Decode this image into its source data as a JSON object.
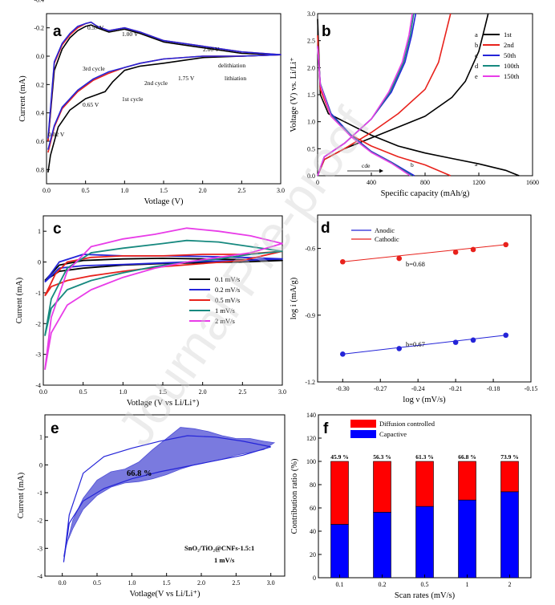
{
  "watermark": "Journal Pre-proof",
  "chart_data": [
    {
      "id": "a",
      "type": "line",
      "panel_label": "a",
      "xlabel": "Votlage (V)",
      "ylabel": "Current (mA)",
      "xlim": [
        0,
        3.0
      ],
      "ylim": [
        0.9,
        -0.3
      ],
      "y_inverted": true,
      "xticks": [
        "0.0",
        "0.5",
        "1.0",
        "1.5",
        "2.0",
        "2.5",
        "3.0"
      ],
      "yticks": [
        "-0.4",
        "-0.2",
        "0.0",
        "0.2",
        "0.4",
        "0.6",
        "0.8"
      ],
      "annotations": [
        "0.57 V",
        "1.00 V",
        "2.00 V",
        "delithiation",
        "lithiation",
        "1.75 V",
        "0.65 V",
        "0.02 V",
        "3rd cycle",
        "2nd cycle",
        "1st cycle"
      ],
      "series": [
        {
          "name": "1st cycle",
          "color": "#000000",
          "x": [
            0.02,
            0.1,
            0.2,
            0.3,
            0.4,
            0.5,
            0.57,
            0.65,
            0.8,
            1.0,
            1.2,
            1.5,
            1.75,
            2.0,
            2.5,
            3.0,
            2.5,
            2.0,
            1.75,
            1.5,
            1.2,
            1.0,
            0.85,
            0.75,
            0.65,
            0.5,
            0.3,
            0.15,
            0.05,
            0.02
          ],
          "y": [
            0.6,
            0.1,
            -0.05,
            -0.13,
            -0.18,
            -0.21,
            -0.22,
            -0.2,
            -0.17,
            -0.19,
            -0.16,
            -0.1,
            -0.08,
            -0.06,
            -0.02,
            -0.01,
            0.0,
            0.01,
            0.03,
            0.05,
            0.07,
            0.1,
            0.18,
            0.25,
            0.27,
            0.3,
            0.38,
            0.5,
            0.7,
            0.82
          ]
        },
        {
          "name": "2nd cycle",
          "color": "#e8221c",
          "x": [
            0.02,
            0.1,
            0.2,
            0.3,
            0.4,
            0.5,
            0.57,
            0.65,
            0.8,
            1.0,
            1.2,
            1.5,
            2.0,
            2.5,
            3.0,
            2.5,
            2.0,
            1.5,
            1.2,
            1.0,
            0.8,
            0.6,
            0.4,
            0.2,
            0.1,
            0.02
          ],
          "y": [
            0.6,
            0.05,
            -0.08,
            -0.15,
            -0.2,
            -0.23,
            -0.24,
            -0.21,
            -0.18,
            -0.2,
            -0.17,
            -0.11,
            -0.07,
            -0.03,
            -0.01,
            0.0,
            0.0,
            0.02,
            0.05,
            0.08,
            0.12,
            0.17,
            0.25,
            0.37,
            0.5,
            0.68
          ]
        },
        {
          "name": "3rd cycle",
          "color": "#2424d8",
          "x": [
            0.02,
            0.1,
            0.2,
            0.3,
            0.4,
            0.5,
            0.57,
            0.65,
            0.8,
            1.0,
            1.2,
            1.5,
            2.0,
            2.5,
            3.0,
            2.5,
            2.0,
            1.5,
            1.2,
            1.0,
            0.8,
            0.6,
            0.4,
            0.2,
            0.1,
            0.02
          ],
          "y": [
            0.58,
            0.04,
            -0.09,
            -0.16,
            -0.21,
            -0.23,
            -0.24,
            -0.21,
            -0.18,
            -0.2,
            -0.17,
            -0.11,
            -0.07,
            -0.03,
            -0.01,
            0.0,
            0.0,
            0.02,
            0.05,
            0.08,
            0.11,
            0.16,
            0.24,
            0.36,
            0.49,
            0.66
          ]
        }
      ]
    },
    {
      "id": "b",
      "type": "line",
      "panel_label": "b",
      "xlabel": "Specific capacity (mAh/g)",
      "ylabel": "Voltage (V) vs. Li/Li⁺",
      "xlim": [
        0,
        1600
      ],
      "ylim": [
        0,
        3.0
      ],
      "xticks": [
        "0",
        "400",
        "800",
        "1200",
        "1600"
      ],
      "yticks": [
        "0.0",
        "0.5",
        "1.0",
        "1.5",
        "2.0",
        "2.5",
        "3.0"
      ],
      "annotations": [
        "a",
        "b",
        "cde"
      ],
      "legend": [
        {
          "key": "a",
          "label": "1st",
          "color": "#000000"
        },
        {
          "key": "b",
          "label": "2nd",
          "color": "#e8221c"
        },
        {
          "key": "c",
          "label": "50th",
          "color": "#2424d8"
        },
        {
          "key": "d",
          "label": "100th",
          "color": "#17897f"
        },
        {
          "key": "e",
          "label": "150th",
          "color": "#e83ce8"
        }
      ],
      "series": [
        {
          "name": "1st discharge",
          "color": "#000000",
          "x": [
            0,
            20,
            80,
            200,
            400,
            600,
            800,
            1000,
            1200,
            1400,
            1500
          ],
          "y": [
            2.9,
            1.5,
            1.15,
            1.0,
            0.75,
            0.55,
            0.42,
            0.32,
            0.22,
            0.1,
            0.0
          ]
        },
        {
          "name": "1st charge",
          "color": "#000000",
          "x": [
            0,
            50,
            200,
            400,
            600,
            800,
            1000,
            1100,
            1200,
            1250,
            1270
          ],
          "y": [
            0.0,
            0.3,
            0.5,
            0.7,
            0.9,
            1.1,
            1.45,
            1.75,
            2.3,
            2.8,
            3.0
          ]
        },
        {
          "name": "2nd discharge",
          "color": "#e8221c",
          "x": [
            0,
            20,
            100,
            250,
            400,
            600,
            800,
            990
          ],
          "y": [
            2.6,
            1.6,
            1.1,
            0.75,
            0.55,
            0.35,
            0.2,
            0.0
          ]
        },
        {
          "name": "2nd charge",
          "color": "#e8221c",
          "x": [
            0,
            50,
            200,
            400,
            600,
            800,
            900,
            960,
            990
          ],
          "y": [
            0.0,
            0.3,
            0.5,
            0.8,
            1.15,
            1.6,
            2.1,
            2.7,
            3.0
          ]
        },
        {
          "name": "50th discharge",
          "color": "#2424d8",
          "x": [
            0,
            20,
            100,
            250,
            400,
            550,
            720
          ],
          "y": [
            2.4,
            1.7,
            1.15,
            0.75,
            0.45,
            0.25,
            0.0
          ]
        },
        {
          "name": "50th charge",
          "color": "#2424d8",
          "x": [
            0,
            50,
            200,
            400,
            550,
            650,
            700,
            730
          ],
          "y": [
            0.0,
            0.35,
            0.6,
            1.05,
            1.55,
            2.1,
            2.6,
            3.0
          ]
        },
        {
          "name": "100th discharge",
          "color": "#17897f",
          "x": [
            0,
            20,
            100,
            250,
            400,
            550,
            700
          ],
          "y": [
            2.4,
            1.7,
            1.12,
            0.73,
            0.44,
            0.24,
            0.0
          ]
        },
        {
          "name": "100th charge",
          "color": "#17897f",
          "x": [
            0,
            50,
            200,
            400,
            540,
            640,
            690,
            715
          ],
          "y": [
            0.0,
            0.35,
            0.6,
            1.05,
            1.55,
            2.1,
            2.6,
            3.0
          ]
        },
        {
          "name": "150th discharge",
          "color": "#e83ce8",
          "x": [
            0,
            20,
            100,
            250,
            400,
            550,
            690
          ],
          "y": [
            2.4,
            1.68,
            1.1,
            0.72,
            0.43,
            0.23,
            0.0
          ]
        },
        {
          "name": "150th charge",
          "color": "#e83ce8",
          "x": [
            0,
            50,
            200,
            400,
            530,
            630,
            680,
            705
          ],
          "y": [
            0.0,
            0.35,
            0.6,
            1.05,
            1.55,
            2.1,
            2.6,
            3.0
          ]
        }
      ]
    },
    {
      "id": "c",
      "type": "line",
      "panel_label": "c",
      "xlabel": "Votlage (V vs Li/Li⁺)",
      "ylabel": "Current (mA)",
      "xlim": [
        0,
        3.0
      ],
      "ylim": [
        -4,
        1.5
      ],
      "xticks": [
        "0.0",
        "0.5",
        "1.0",
        "1.5",
        "2.0",
        "2.5",
        "3.0"
      ],
      "yticks": [
        "-4",
        "-3",
        "-2",
        "-1",
        "0",
        "1"
      ],
      "legend": [
        {
          "label": "0.1 mV/s",
          "color": "#000000"
        },
        {
          "label": "0.2 mV/s",
          "color": "#2424d8"
        },
        {
          "label": "0.5 mV/s",
          "color": "#e8221c"
        },
        {
          "label": "1 mV/s",
          "color": "#17897f"
        },
        {
          "label": "2 mV/s",
          "color": "#e83ce8"
        }
      ],
      "series": [
        {
          "name": "0.1 mV/s",
          "color": "#000000",
          "x": [
            0.02,
            0.2,
            0.5,
            1.0,
            1.5,
            2.0,
            2.5,
            3.0,
            2.5,
            2.0,
            1.5,
            1.0,
            0.5,
            0.2,
            0.02
          ],
          "y": [
            -0.6,
            -0.1,
            0.05,
            0.1,
            0.12,
            0.1,
            0.08,
            0.05,
            0.0,
            -0.02,
            -0.05,
            -0.1,
            -0.2,
            -0.3,
            -0.6
          ]
        },
        {
          "name": "0.2 mV/s",
          "color": "#2424d8",
          "x": [
            0.02,
            0.2,
            0.5,
            1.0,
            1.5,
            2.0,
            2.5,
            3.0,
            2.5,
            2.0,
            1.5,
            1.0,
            0.5,
            0.2,
            0.02
          ],
          "y": [
            -0.65,
            0.0,
            0.25,
            0.2,
            0.2,
            0.18,
            0.15,
            0.1,
            0.05,
            0.02,
            -0.03,
            -0.08,
            -0.12,
            -0.2,
            -0.65
          ]
        },
        {
          "name": "0.5 mV/s",
          "color": "#e8221c",
          "x": [
            0.02,
            0.15,
            0.3,
            0.6,
            1.0,
            1.5,
            2.0,
            2.5,
            3.0,
            2.5,
            2.0,
            1.5,
            1.0,
            0.6,
            0.3,
            0.1,
            0.02
          ],
          "y": [
            -1.1,
            -0.4,
            0.0,
            0.15,
            0.2,
            0.2,
            0.25,
            0.25,
            0.35,
            0.05,
            -0.05,
            -0.15,
            -0.3,
            -0.45,
            -0.6,
            -0.8,
            -1.1
          ]
        },
        {
          "name": "1 mV/s",
          "color": "#17897f",
          "x": [
            0.02,
            0.1,
            0.3,
            0.6,
            1.0,
            1.5,
            1.8,
            2.2,
            2.6,
            3.0,
            2.6,
            2.2,
            1.8,
            1.4,
            1.0,
            0.6,
            0.3,
            0.1,
            0.02
          ],
          "y": [
            -2.4,
            -1.2,
            -0.2,
            0.3,
            0.45,
            0.6,
            0.7,
            0.65,
            0.5,
            0.35,
            0.25,
            0.1,
            0.0,
            -0.15,
            -0.35,
            -0.6,
            -0.9,
            -1.5,
            -2.4
          ]
        },
        {
          "name": "2 mV/s",
          "color": "#e83ce8",
          "x": [
            0.02,
            0.1,
            0.3,
            0.6,
            1.0,
            1.4,
            1.8,
            2.2,
            2.6,
            3.0,
            2.6,
            2.2,
            1.8,
            1.4,
            1.0,
            0.6,
            0.3,
            0.1,
            0.02
          ],
          "y": [
            -3.5,
            -1.8,
            -0.3,
            0.5,
            0.75,
            0.9,
            1.1,
            1.0,
            0.85,
            0.6,
            0.3,
            0.15,
            0.0,
            -0.2,
            -0.5,
            -0.9,
            -1.4,
            -2.3,
            -3.5
          ]
        }
      ]
    },
    {
      "id": "d",
      "type": "scatter",
      "panel_label": "d",
      "xlabel": "log ν (mV/s)",
      "ylabel": "log i (mA/g)",
      "xlim": [
        -0.32,
        -0.15
      ],
      "ylim": [
        -1.2,
        -0.45
      ],
      "xticks": [
        "-0.30",
        "-0.27",
        "-0.24",
        "-0.21",
        "-0.18",
        "-0.15"
      ],
      "yticks": [
        "-1.2",
        "-0.9",
        "-0.6"
      ],
      "annotations": [
        "b=0.68",
        "b=0.67"
      ],
      "legend": [
        {
          "label": "Anodic",
          "color": "#2424d8"
        },
        {
          "label": "Cathodic",
          "color": "#e8221c"
        }
      ],
      "series": [
        {
          "name": "Cathodic",
          "color": "#e8221c",
          "fit": "b=0.68",
          "x": [
            -0.3,
            -0.255,
            -0.21,
            -0.196,
            -0.17
          ],
          "y": [
            -0.66,
            -0.645,
            -0.617,
            -0.605,
            -0.583
          ]
        },
        {
          "name": "Anodic",
          "color": "#2424d8",
          "fit": "b=0.67",
          "x": [
            -0.3,
            -0.255,
            -0.21,
            -0.196,
            -0.17
          ],
          "y": [
            -1.075,
            -1.05,
            -1.022,
            -1.012,
            -0.99
          ]
        }
      ]
    },
    {
      "id": "e",
      "type": "area",
      "panel_label": "e",
      "xlabel": "Votlage(V vs Li/Li⁺)",
      "ylabel": "Current (mA)",
      "xlim": [
        -0.25,
        3.2
      ],
      "ylim": [
        -4,
        1.8
      ],
      "xticks": [
        "0.0",
        "0.5",
        "1.0",
        "1.5",
        "2.0",
        "2.5",
        "3.0"
      ],
      "yticks": [
        "-4",
        "-3",
        "-2",
        "-1",
        "0",
        "1"
      ],
      "annotations": [
        "66.8 %",
        "SnO₂/TiO₂@CNFs-1.5:1",
        "1 mV/s"
      ],
      "series": [
        {
          "name": "CV 1 mV/s",
          "color": "#2424d8",
          "x": [
            0.02,
            0.1,
            0.3,
            0.6,
            1.0,
            1.4,
            1.8,
            2.2,
            2.6,
            3.0,
            2.6,
            2.2,
            1.8,
            1.4,
            1.0,
            0.6,
            0.3,
            0.1,
            0.02
          ],
          "y": [
            -3.5,
            -1.8,
            -0.3,
            0.3,
            0.6,
            0.85,
            1.05,
            1.0,
            0.85,
            0.65,
            0.35,
            0.15,
            -0.05,
            -0.25,
            -0.5,
            -0.85,
            -1.3,
            -2.1,
            -3.5
          ]
        },
        {
          "name": "Capacitive contribution",
          "color": "#4f4fd6",
          "fill": "#6b6bdc",
          "x": [
            0.02,
            0.15,
            0.3,
            0.5,
            0.7,
            0.9,
            1.1,
            1.3,
            1.5,
            1.7,
            1.9,
            2.1,
            2.3,
            2.5,
            2.7,
            2.9,
            3.05,
            2.9,
            2.7,
            2.5,
            2.3,
            2.1,
            1.9,
            1.7,
            1.5,
            1.3,
            1.1,
            0.9,
            0.7,
            0.5,
            0.3,
            0.15,
            0.05,
            0.02
          ],
          "y": [
            -3.3,
            -2.0,
            -1.2,
            -0.55,
            -0.25,
            -0.15,
            0.1,
            0.55,
            0.95,
            1.35,
            1.3,
            1.2,
            1.05,
            0.95,
            0.95,
            0.85,
            0.8,
            0.55,
            0.45,
            0.35,
            0.2,
            0.1,
            0.0,
            -0.15,
            -0.35,
            -0.5,
            -0.6,
            -0.65,
            -0.8,
            -1.1,
            -1.6,
            -2.3,
            -2.9,
            -3.3
          ]
        }
      ]
    },
    {
      "id": "f",
      "type": "bar",
      "panel_label": "f",
      "stacked": true,
      "xlabel": "Scan rates (mV/s)",
      "ylabel": "Contribution ratio (%)",
      "ylim": [
        0,
        140
      ],
      "categories": [
        "0.1",
        "0.2",
        "0.5",
        "1",
        "2"
      ],
      "yticks": [
        "0",
        "20",
        "40",
        "60",
        "80",
        "100",
        "120",
        "140"
      ],
      "data_labels": [
        "45.9 %",
        "56.3 %",
        "61.3 %",
        "66.8 %",
        "73.9 %"
      ],
      "legend": [
        {
          "label": "Diffusion controlled",
          "color": "#ff0000"
        },
        {
          "label": "Capactive",
          "color": "#0000ff"
        }
      ],
      "series": [
        {
          "name": "Capactive",
          "color": "#0000ff",
          "values": [
            45.9,
            56.3,
            61.3,
            66.8,
            73.9
          ]
        },
        {
          "name": "Diffusion controlled",
          "color": "#ff0000",
          "values": [
            54.1,
            43.7,
            38.7,
            33.2,
            26.1
          ]
        }
      ]
    }
  ]
}
